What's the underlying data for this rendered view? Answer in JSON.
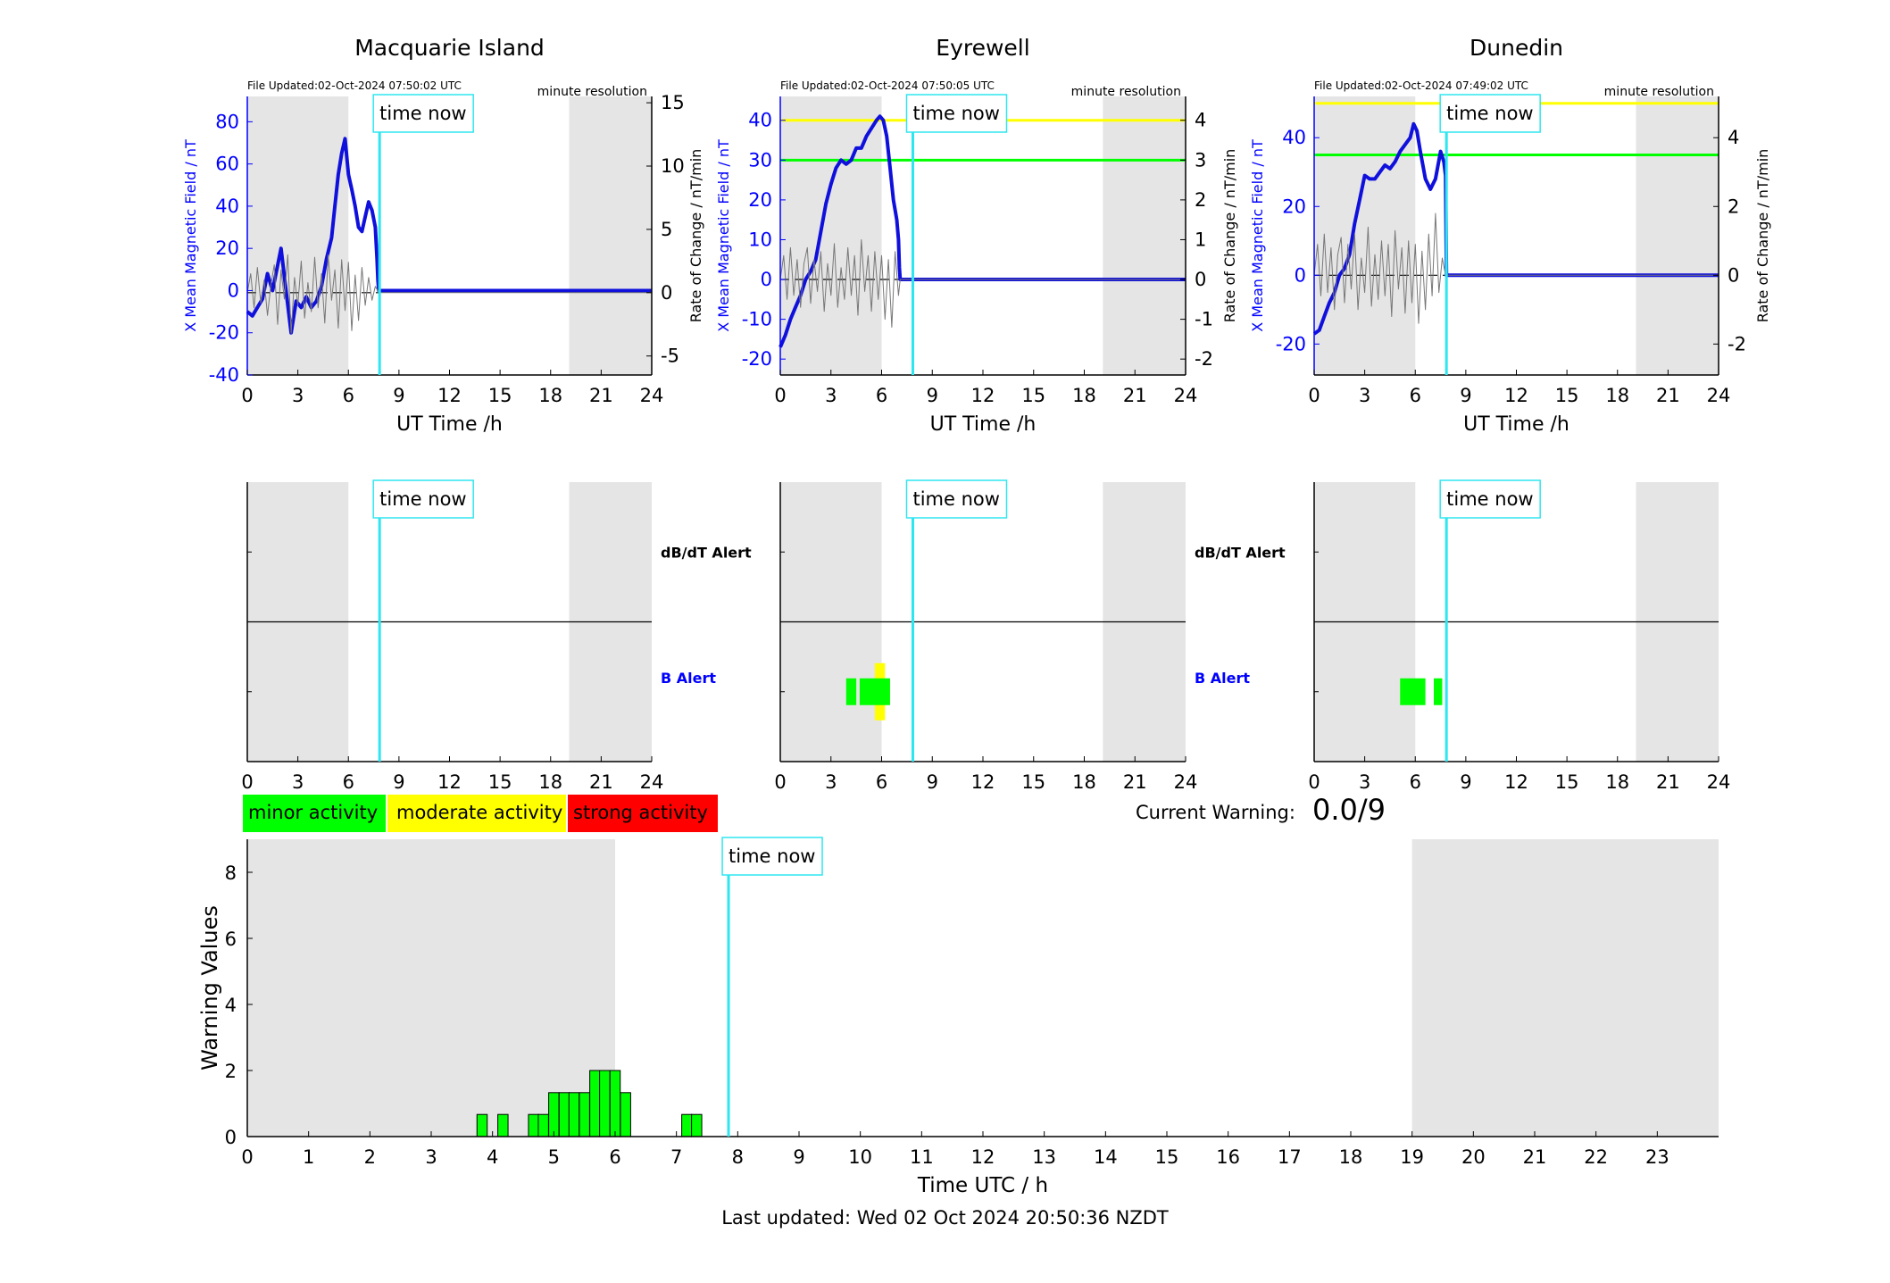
{
  "colors": {
    "shade": "#e5e5e5",
    "field": "#1010dd",
    "rate": "#777777",
    "timenow": "#2ee6f0",
    "yellow": "#ffff00",
    "green": "#00ff00",
    "red": "#ff0000",
    "blue_text": "#0000ff"
  },
  "time_now_label": "time now",
  "legend": {
    "minor": "minor activity",
    "moderate": "moderate activity",
    "strong": "strong activity"
  },
  "current_warning": {
    "label": "Current Warning:",
    "value": "0.0/9"
  },
  "footer": "Last updated: Wed 02 Oct 2024 20:50:36 NZDT",
  "chart_data": [
    {
      "type": "line",
      "title": "Macquarie Island",
      "file_updated": "File Updated:02-Oct-2024 07:50:02 UTC",
      "resolution": "minute resolution",
      "xlabel": "UT Time /h",
      "ylabel_left": "X Mean Magnetic Field / nT",
      "ylabel_right": "Rate of Change / nT/min",
      "xlim": [
        0,
        24
      ],
      "ylim_left": [
        -40,
        92
      ],
      "ylim_right": [
        -6.5,
        15.5
      ],
      "xticks": [
        0,
        3,
        6,
        9,
        12,
        15,
        18,
        21,
        24
      ],
      "yticks_left": [
        -40,
        -20,
        0,
        20,
        40,
        60,
        80
      ],
      "yticks_right": [
        -5,
        0,
        5,
        10,
        15
      ],
      "yticks_right_labels": [
        "-5",
        "0",
        "5",
        "10",
        "15"
      ],
      "night_shading": [
        [
          0,
          6
        ],
        [
          19.1,
          24
        ]
      ],
      "time_now": 7.85,
      "thresholds": [],
      "series": [
        {
          "kind": "field",
          "x": [
            0,
            0.3,
            0.6,
            0.9,
            1.2,
            1.5,
            1.8,
            2.0,
            2.3,
            2.6,
            2.9,
            3.2,
            3.5,
            3.8,
            4.1,
            4.4,
            4.7,
            5.0,
            5.2,
            5.4,
            5.6,
            5.8,
            6.0,
            6.2,
            6.4,
            6.6,
            6.8,
            7.0,
            7.2,
            7.4,
            7.6,
            7.7,
            7.75,
            7.8,
            24
          ],
          "y": [
            -10,
            -12,
            -8,
            -4,
            8,
            0,
            12,
            20,
            0,
            -20,
            -5,
            -8,
            -3,
            -8,
            -5,
            2,
            15,
            25,
            40,
            55,
            65,
            72,
            55,
            48,
            40,
            30,
            28,
            35,
            42,
            38,
            30,
            15,
            5,
            0,
            0
          ]
        },
        {
          "kind": "rate",
          "x": [
            0,
            0.2,
            0.4,
            0.6,
            0.8,
            1.0,
            1.2,
            1.4,
            1.6,
            1.8,
            2.0,
            2.2,
            2.4,
            2.6,
            2.8,
            3.0,
            3.2,
            3.4,
            3.6,
            3.8,
            4.0,
            4.2,
            4.4,
            4.6,
            4.8,
            5.0,
            5.2,
            5.4,
            5.6,
            5.8,
            6.0,
            6.2,
            6.4,
            6.6,
            6.8,
            7.0,
            7.2,
            7.4,
            7.6,
            7.8,
            24
          ],
          "y": [
            0,
            1.5,
            -1.2,
            2.0,
            -0.8,
            1.0,
            -1.8,
            0.6,
            2.2,
            -2.5,
            1.8,
            -0.5,
            3.0,
            -3.2,
            1.2,
            -1.0,
            2.5,
            -2.0,
            0.8,
            -1.5,
            2.8,
            -1.2,
            1.5,
            -2.4,
            3.0,
            -0.6,
            1.8,
            -2.8,
            2.6,
            -1.4,
            2.4,
            -3.0,
            1.4,
            -2.2,
            2.0,
            -1.0,
            1.2,
            -0.6,
            0.5,
            0,
            0
          ]
        }
      ]
    },
    {
      "type": "line",
      "title": "Eyrewell",
      "file_updated": "File Updated:02-Oct-2024 07:50:05 UTC",
      "resolution": "minute resolution",
      "xlabel": "UT Time /h",
      "ylabel_left": "X Mean Magnetic Field / nT",
      "ylabel_right": "Rate of Change / nT/min",
      "xlim": [
        0,
        24
      ],
      "ylim_left": [
        -24,
        46
      ],
      "ylim_right": [
        -2.4,
        4.6
      ],
      "xticks": [
        0,
        3,
        6,
        9,
        12,
        15,
        18,
        21,
        24
      ],
      "yticks_left": [
        -20,
        -10,
        0,
        10,
        20,
        30,
        40
      ],
      "yticks_right": [
        -2,
        -1,
        0,
        1,
        2,
        3,
        4
      ],
      "yticks_right_labels": [
        "-2",
        "-1",
        "0",
        "1",
        "2",
        "3",
        "4"
      ],
      "night_shading": [
        [
          0,
          6
        ],
        [
          19.1,
          24
        ]
      ],
      "time_now": 7.85,
      "thresholds": [
        {
          "value": 40,
          "axis": "left",
          "color": "yellow"
        },
        {
          "value": 30,
          "axis": "left",
          "color": "green"
        }
      ],
      "series": [
        {
          "kind": "field",
          "x": [
            0,
            0.3,
            0.6,
            0.9,
            1.2,
            1.5,
            1.8,
            2.1,
            2.4,
            2.7,
            3.0,
            3.3,
            3.6,
            3.9,
            4.2,
            4.5,
            4.8,
            5.1,
            5.4,
            5.7,
            5.9,
            6.1,
            6.3,
            6.5,
            6.7,
            6.9,
            7.0,
            7.05,
            7.1,
            24
          ],
          "y": [
            -17,
            -14,
            -10,
            -7,
            -4,
            0,
            2,
            5,
            12,
            19,
            24,
            28,
            30,
            29,
            30,
            33,
            33,
            36,
            38,
            40,
            41,
            40,
            36,
            28,
            20,
            15,
            10,
            3,
            0,
            0
          ]
        },
        {
          "kind": "rate",
          "x": [
            0,
            0.2,
            0.4,
            0.6,
            0.8,
            1.0,
            1.2,
            1.4,
            1.6,
            1.8,
            2.0,
            2.2,
            2.4,
            2.6,
            2.8,
            3.0,
            3.2,
            3.4,
            3.6,
            3.8,
            4.0,
            4.2,
            4.4,
            4.6,
            4.8,
            5.0,
            5.2,
            5.4,
            5.6,
            5.8,
            6.0,
            6.2,
            6.4,
            6.6,
            6.8,
            7.0,
            7.1,
            24
          ],
          "y": [
            0,
            0.6,
            -0.5,
            0.8,
            -0.4,
            0.5,
            -0.7,
            0.4,
            0.8,
            -0.6,
            0.5,
            -0.3,
            0.7,
            -0.8,
            0.4,
            -0.4,
            0.9,
            -0.7,
            0.3,
            -0.5,
            0.8,
            -0.4,
            0.6,
            -0.9,
            1.0,
            -0.3,
            0.6,
            -0.8,
            0.7,
            -0.5,
            0.6,
            -1.0,
            0.5,
            -1.2,
            0.7,
            -0.4,
            0,
            0
          ]
        }
      ]
    },
    {
      "type": "line",
      "title": "Dunedin",
      "file_updated": "File Updated:02-Oct-2024 07:49:02 UTC",
      "resolution": "minute resolution",
      "xlabel": "UT Time /h",
      "ylabel_left": "X Mean Magnetic Field / nT",
      "ylabel_right": "Rate of Change / nT/min",
      "xlim": [
        0,
        24
      ],
      "ylim_left": [
        -29,
        52
      ],
      "ylim_right": [
        -2.9,
        5.2
      ],
      "xticks": [
        0,
        3,
        6,
        9,
        12,
        15,
        18,
        21,
        24
      ],
      "yticks_left": [
        -20,
        0,
        20,
        40
      ],
      "yticks_right": [
        -2,
        0,
        2,
        4
      ],
      "yticks_right_labels": [
        "-2",
        "0",
        "2",
        "4"
      ],
      "night_shading": [
        [
          0,
          6
        ],
        [
          19.1,
          24
        ]
      ],
      "time_now": 7.85,
      "thresholds": [
        {
          "value": 50,
          "axis": "left",
          "color": "yellow"
        },
        {
          "value": 35,
          "axis": "left",
          "color": "green"
        }
      ],
      "series": [
        {
          "kind": "field",
          "x": [
            0,
            0.3,
            0.6,
            0.9,
            1.2,
            1.5,
            1.8,
            2.1,
            2.4,
            2.7,
            3.0,
            3.3,
            3.6,
            3.9,
            4.2,
            4.5,
            4.8,
            5.1,
            5.4,
            5.7,
            5.9,
            6.1,
            6.3,
            6.6,
            6.9,
            7.2,
            7.5,
            7.7,
            7.8,
            7.85,
            24
          ],
          "y": [
            -17,
            -16,
            -12,
            -8,
            -5,
            0,
            2,
            6,
            15,
            22,
            29,
            28,
            28,
            30,
            32,
            31,
            33,
            36,
            38,
            40,
            44,
            42,
            36,
            28,
            25,
            28,
            36,
            33,
            29,
            0,
            0
          ]
        },
        {
          "kind": "rate",
          "x": [
            0,
            0.2,
            0.4,
            0.6,
            0.8,
            1.0,
            1.2,
            1.4,
            1.6,
            1.8,
            2.0,
            2.2,
            2.4,
            2.6,
            2.8,
            3.0,
            3.2,
            3.4,
            3.6,
            3.8,
            4.0,
            4.2,
            4.4,
            4.6,
            4.8,
            5.0,
            5.2,
            5.4,
            5.6,
            5.8,
            6.0,
            6.2,
            6.4,
            6.6,
            6.8,
            7.0,
            7.2,
            7.4,
            7.6,
            7.8,
            24
          ],
          "y": [
            0,
            0.9,
            -0.6,
            1.2,
            -0.5,
            0.8,
            -1.0,
            0.6,
            1.1,
            -0.8,
            0.9,
            -0.4,
            1.2,
            -1.0,
            0.5,
            -0.5,
            1.4,
            -0.9,
            0.6,
            -0.7,
            1.0,
            -0.6,
            0.9,
            -1.2,
            1.3,
            -0.4,
            0.8,
            -1.1,
            1.0,
            -0.8,
            0.9,
            -1.4,
            0.7,
            -1.0,
            1.2,
            -0.6,
            1.8,
            -0.5,
            0.5,
            0,
            0
          ]
        }
      ]
    },
    {
      "type": "bar",
      "alert_panel": true,
      "labels": [
        "dB/dT Alert",
        "B Alert"
      ],
      "xlim": [
        0,
        24
      ],
      "xticks": [
        0,
        3,
        6,
        9,
        12,
        15,
        18,
        21,
        24
      ],
      "night_shading": [
        [
          0,
          6
        ],
        [
          19.1,
          24
        ]
      ],
      "time_now": 7.85,
      "alerts": []
    },
    {
      "type": "bar",
      "alert_panel": true,
      "labels": [
        "dB/dT Alert",
        "B Alert"
      ],
      "xlim": [
        0,
        24
      ],
      "xticks": [
        0,
        3,
        6,
        9,
        12,
        15,
        18,
        21,
        24
      ],
      "night_shading": [
        [
          0,
          6
        ],
        [
          19.1,
          24
        ]
      ],
      "time_now": 7.85,
      "alerts": [
        {
          "start": 5.6,
          "end": 6.2,
          "level": "moderate"
        },
        {
          "start": 3.9,
          "end": 4.5,
          "level": "minor"
        },
        {
          "start": 4.7,
          "end": 6.5,
          "level": "minor"
        }
      ]
    },
    {
      "type": "bar",
      "alert_panel": true,
      "labels": [
        "dB/dT Alert",
        "B Alert"
      ],
      "xlim": [
        0,
        24
      ],
      "xticks": [
        0,
        3,
        6,
        9,
        12,
        15,
        18,
        21,
        24
      ],
      "night_shading": [
        [
          0,
          6
        ],
        [
          19.1,
          24
        ]
      ],
      "time_now": 7.85,
      "alerts": [
        {
          "start": 5.1,
          "end": 6.6,
          "level": "minor"
        },
        {
          "start": 7.1,
          "end": 7.6,
          "level": "minor"
        }
      ]
    },
    {
      "type": "bar",
      "xlabel": "Time UTC / h",
      "ylabel": "Warning Values",
      "xlim": [
        0,
        24
      ],
      "ylim": [
        0,
        9
      ],
      "xticks": [
        0,
        1,
        2,
        3,
        4,
        5,
        6,
        7,
        8,
        9,
        10,
        11,
        12,
        13,
        14,
        15,
        16,
        17,
        18,
        19,
        20,
        21,
        22,
        23
      ],
      "yticks": [
        0,
        2,
        4,
        6,
        8
      ],
      "night_shading": [
        [
          0,
          6
        ],
        [
          19,
          24
        ]
      ],
      "time_now": 7.85,
      "bar_width": 0.1667,
      "x": [
        3.83,
        4.17,
        4.67,
        4.83,
        5.0,
        5.17,
        5.33,
        5.5,
        5.67,
        5.83,
        6.0,
        6.17,
        7.17,
        7.33
      ],
      "values": [
        0.67,
        0.67,
        0.67,
        0.67,
        1.33,
        1.33,
        1.33,
        1.33,
        2,
        2,
        2,
        1.33,
        0.67,
        0.67
      ]
    }
  ]
}
